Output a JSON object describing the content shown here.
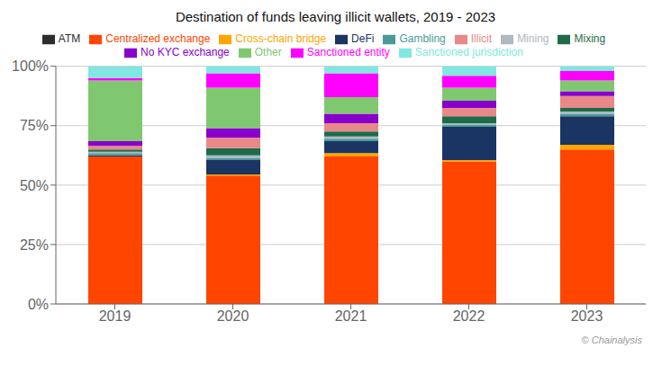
{
  "chart_data": {
    "type": "bar",
    "title": "Destination of funds leaving illicit wallets, 2019 - 2023",
    "stacked": true,
    "categories": [
      "2019",
      "2020",
      "2021",
      "2022",
      "2023"
    ],
    "series": [
      {
        "name": "Centralized exchange",
        "color": "#FF4500",
        "values": [
          62,
          54,
          62,
          60,
          65
        ]
      },
      {
        "name": "Cross-chain bridge",
        "color": "#FFA500",
        "values": [
          0.0,
          0.5,
          1.5,
          0.5,
          2.0
        ]
      },
      {
        "name": "ATM",
        "color": "#2d2d2d",
        "values": [
          0.0,
          0.0,
          0.0,
          0.0,
          0.0
        ]
      },
      {
        "name": "DeFi",
        "color": "#1a3564",
        "values": [
          0.5,
          6.0,
          5.0,
          14.0,
          12.0
        ]
      },
      {
        "name": "Gambling",
        "color": "#4a9a9a",
        "values": [
          1.0,
          1.0,
          1.0,
          1.0,
          1.0
        ]
      },
      {
        "name": "Mining",
        "color": "#b0b8c0",
        "values": [
          0.5,
          1.0,
          1.0,
          0.5,
          1.0
        ]
      },
      {
        "name": "Mixing",
        "color": "#1e6b4a",
        "values": [
          1.0,
          3.0,
          2.0,
          3.0,
          1.5
        ]
      },
      {
        "name": "Illicit",
        "color": "#e88888",
        "values": [
          1.5,
          4.5,
          3.5,
          3.5,
          5.0
        ]
      },
      {
        "name": "No KYC exchange",
        "color": "#8800cc",
        "values": [
          2.0,
          4.0,
          4.0,
          3.0,
          2.0
        ]
      },
      {
        "name": "Other",
        "color": "#80c870",
        "values": [
          25.5,
          17.0,
          7.0,
          5.5,
          4.5
        ]
      },
      {
        "name": "Sanctioned entity",
        "color": "#FF00FF",
        "values": [
          1.0,
          6.0,
          10.0,
          5.0,
          4.0
        ]
      },
      {
        "name": "Sanctioned jurisdiction",
        "color": "#80e8e0",
        "values": [
          5.0,
          3.0,
          3.0,
          4.0,
          2.0
        ]
      }
    ],
    "ylim": [
      0,
      100
    ],
    "yticks": [
      {
        "value": 0,
        "label": "0%"
      },
      {
        "value": 25,
        "label": "25%"
      },
      {
        "value": 50,
        "label": "50%"
      },
      {
        "value": 75,
        "label": "75%"
      },
      {
        "value": 100,
        "label": "100%"
      }
    ],
    "grid": true,
    "legend": "top",
    "annotations": [
      "© Chainalysis"
    ]
  }
}
